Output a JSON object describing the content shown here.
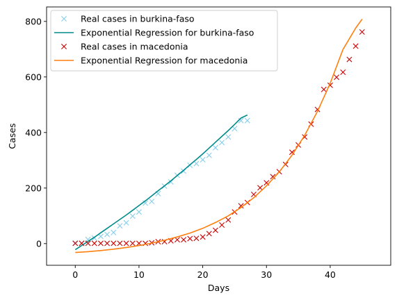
{
  "chart_data": {
    "type": "scatter",
    "title": "",
    "xlabel": "Days",
    "ylabel": "Cases",
    "xlim": [
      -4.5,
      49.5
    ],
    "ylim": [
      -78,
      852
    ],
    "x_ticks": [
      0,
      10,
      20,
      30,
      40
    ],
    "y_ticks": [
      0,
      200,
      400,
      600,
      800
    ],
    "x_tick_labels": [
      "0",
      "10",
      "20",
      "30",
      "40"
    ],
    "y_tick_labels": [
      "0",
      "200",
      "400",
      "600",
      "800"
    ],
    "grid": false,
    "legend": "top-left",
    "series": [
      {
        "name": "Real cases in burkina-faso",
        "kind": "markers",
        "marker": "x",
        "color": "#87ceeb",
        "x": [
          0,
          1,
          2,
          3,
          4,
          5,
          6,
          7,
          8,
          9,
          10,
          11,
          12,
          13,
          14,
          15,
          16,
          17,
          18,
          19,
          20,
          21,
          22,
          23,
          24,
          25,
          26,
          27
        ],
        "y": [
          2,
          2,
          15,
          20,
          26,
          33,
          40,
          64,
          75,
          99,
          114,
          146,
          152,
          180,
          207,
          222,
          246,
          261,
          282,
          288,
          302,
          318,
          345,
          364,
          384,
          414,
          443,
          443
        ]
      },
      {
        "name": "Exponential Regression for burkina-faso",
        "kind": "line",
        "color": "#008b8b",
        "x": [
          0,
          1,
          2,
          3,
          4,
          5,
          6,
          7,
          8,
          9,
          10,
          11,
          12,
          13,
          14,
          15,
          16,
          17,
          18,
          19,
          20,
          21,
          22,
          23,
          24,
          25,
          26,
          27
        ],
        "y": [
          -22,
          -7,
          8,
          23,
          39,
          55,
          71,
          87,
          103,
          120,
          137,
          154,
          172,
          190,
          208,
          226,
          245,
          264,
          284,
          303,
          323,
          344,
          365,
          386,
          407,
          429,
          452,
          463
        ]
      },
      {
        "name": "Real cases in macedonia",
        "kind": "markers",
        "marker": "x",
        "color": "#cc0000",
        "x": [
          0,
          1,
          2,
          3,
          4,
          5,
          6,
          7,
          8,
          9,
          10,
          11,
          12,
          13,
          14,
          15,
          16,
          17,
          18,
          19,
          20,
          21,
          22,
          23,
          24,
          25,
          26,
          27,
          28,
          29,
          30,
          31,
          32,
          33,
          34,
          35,
          36,
          37,
          38,
          39,
          40,
          41,
          42,
          43,
          44,
          45
        ],
        "y": [
          1,
          1,
          1,
          1,
          1,
          1,
          1,
          1,
          1,
          1,
          1,
          1,
          3,
          7,
          7,
          10,
          14,
          14,
          18,
          19,
          24,
          36,
          48,
          67,
          85,
          114,
          136,
          148,
          177,
          201,
          219,
          241,
          259,
          285,
          329,
          355,
          384,
          430,
          483,
          555,
          570,
          599,
          617,
          663,
          711,
          762
        ]
      },
      {
        "name": "Exponential Regression for macedonia",
        "kind": "line",
        "color": "#ff7f0e",
        "x": [
          0,
          2,
          4,
          6,
          8,
          10,
          12,
          14,
          16,
          18,
          20,
          22,
          24,
          26,
          28,
          30,
          32,
          34,
          36,
          38,
          40,
          42,
          44,
          45
        ],
        "y": [
          -32,
          -29,
          -25,
          -20,
          -14,
          -7,
          2,
          12,
          24,
          38,
          55,
          76,
          100,
          130,
          165,
          208,
          258,
          318,
          390,
          476,
          577,
          699,
          776,
          808
        ]
      }
    ]
  }
}
